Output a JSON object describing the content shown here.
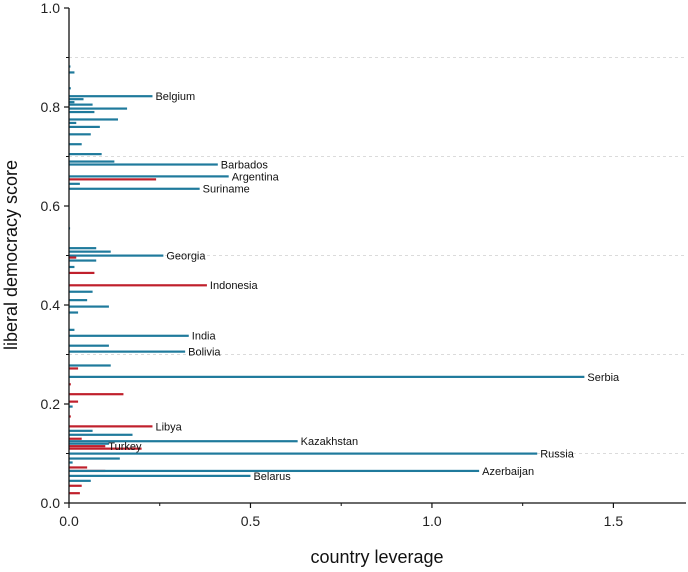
{
  "chart_data": {
    "type": "bar",
    "orientation": "horizontal",
    "xlabel": "country leverage",
    "ylabel": "liberal democracy score",
    "xlim": [
      0,
      1.7
    ],
    "ylim": [
      0,
      1.0
    ],
    "x_ticks": [
      {
        "value": 0,
        "label": "0.0"
      },
      {
        "value": 0.5,
        "label": "0.5"
      },
      {
        "value": 1.0,
        "label": "1.0"
      },
      {
        "value": 1.5,
        "label": "1.5"
      }
    ],
    "y_ticks": [
      {
        "value": 0,
        "label": "0.0"
      },
      {
        "value": 0.2,
        "label": "0.2"
      },
      {
        "value": 0.4,
        "label": "0.4"
      },
      {
        "value": 0.6,
        "label": "0.6"
      },
      {
        "value": 0.8,
        "label": "0.8"
      },
      {
        "value": 1.0,
        "label": "1.0"
      }
    ],
    "y_gridlines": [
      0.1,
      0.3,
      0.5,
      0.7,
      0.9
    ],
    "grid": "horizontal dashed",
    "colors": {
      "group_a": "#1f7a9c",
      "group_b": "#c0202c"
    },
    "bars": [
      {
        "score": 0.882,
        "leverage": 0.004,
        "group": "a"
      },
      {
        "score": 0.87,
        "leverage": 0.015,
        "group": "a"
      },
      {
        "score": 0.838,
        "leverage": 0.005,
        "group": "a"
      },
      {
        "score": 0.822,
        "leverage": 0.23,
        "group": "a",
        "label": "Belgium"
      },
      {
        "score": 0.816,
        "leverage": 0.04,
        "group": "a"
      },
      {
        "score": 0.81,
        "leverage": 0.015,
        "group": "a"
      },
      {
        "score": 0.805,
        "leverage": 0.065,
        "group": "a"
      },
      {
        "score": 0.797,
        "leverage": 0.16,
        "group": "a"
      },
      {
        "score": 0.79,
        "leverage": 0.07,
        "group": "a"
      },
      {
        "score": 0.775,
        "leverage": 0.135,
        "group": "a"
      },
      {
        "score": 0.768,
        "leverage": 0.02,
        "group": "a"
      },
      {
        "score": 0.76,
        "leverage": 0.085,
        "group": "a"
      },
      {
        "score": 0.745,
        "leverage": 0.06,
        "group": "a"
      },
      {
        "score": 0.725,
        "leverage": 0.035,
        "group": "a"
      },
      {
        "score": 0.705,
        "leverage": 0.09,
        "group": "a"
      },
      {
        "score": 0.69,
        "leverage": 0.125,
        "group": "a"
      },
      {
        "score": 0.684,
        "leverage": 0.41,
        "group": "a",
        "label": "Barbados"
      },
      {
        "score": 0.66,
        "leverage": 0.44,
        "group": "a",
        "label": "Argentina"
      },
      {
        "score": 0.654,
        "leverage": 0.24,
        "group": "b"
      },
      {
        "score": 0.645,
        "leverage": 0.03,
        "group": "a"
      },
      {
        "score": 0.635,
        "leverage": 0.36,
        "group": "a",
        "label": "Suriname"
      },
      {
        "score": 0.555,
        "leverage": 0.003,
        "group": "a"
      },
      {
        "score": 0.515,
        "leverage": 0.075,
        "group": "a"
      },
      {
        "score": 0.508,
        "leverage": 0.115,
        "group": "a"
      },
      {
        "score": 0.5,
        "leverage": 0.26,
        "group": "a",
        "label": "Georgia"
      },
      {
        "score": 0.496,
        "leverage": 0.02,
        "group": "b"
      },
      {
        "score": 0.49,
        "leverage": 0.075,
        "group": "a"
      },
      {
        "score": 0.477,
        "leverage": 0.015,
        "group": "a"
      },
      {
        "score": 0.465,
        "leverage": 0.07,
        "group": "b"
      },
      {
        "score": 0.44,
        "leverage": 0.38,
        "group": "b",
        "label": "Indonesia"
      },
      {
        "score": 0.427,
        "leverage": 0.065,
        "group": "a"
      },
      {
        "score": 0.41,
        "leverage": 0.05,
        "group": "a"
      },
      {
        "score": 0.397,
        "leverage": 0.11,
        "group": "a"
      },
      {
        "score": 0.385,
        "leverage": 0.025,
        "group": "a"
      },
      {
        "score": 0.35,
        "leverage": 0.015,
        "group": "a"
      },
      {
        "score": 0.338,
        "leverage": 0.33,
        "group": "a",
        "label": "India"
      },
      {
        "score": 0.318,
        "leverage": 0.11,
        "group": "a"
      },
      {
        "score": 0.306,
        "leverage": 0.32,
        "group": "a",
        "label": "Bolivia"
      },
      {
        "score": 0.278,
        "leverage": 0.115,
        "group": "a"
      },
      {
        "score": 0.272,
        "leverage": 0.025,
        "group": "b"
      },
      {
        "score": 0.255,
        "leverage": 1.42,
        "group": "a",
        "label": "Serbia"
      },
      {
        "score": 0.24,
        "leverage": 0.005,
        "group": "b"
      },
      {
        "score": 0.22,
        "leverage": 0.15,
        "group": "b"
      },
      {
        "score": 0.205,
        "leverage": 0.025,
        "group": "b"
      },
      {
        "score": 0.195,
        "leverage": 0.01,
        "group": "a"
      },
      {
        "score": 0.175,
        "leverage": 0.005,
        "group": "b"
      },
      {
        "score": 0.155,
        "leverage": 0.23,
        "group": "b",
        "label": "Libya"
      },
      {
        "score": 0.146,
        "leverage": 0.065,
        "group": "a"
      },
      {
        "score": 0.138,
        "leverage": 0.175,
        "group": "a"
      },
      {
        "score": 0.13,
        "leverage": 0.035,
        "group": "b"
      },
      {
        "score": 0.125,
        "leverage": 0.63,
        "group": "a",
        "label": "Kazakhstan"
      },
      {
        "score": 0.12,
        "leverage": 0.11,
        "group": "a"
      },
      {
        "score": 0.115,
        "leverage": 0.1,
        "group": "b",
        "label": "Turkey"
      },
      {
        "score": 0.11,
        "leverage": 0.2,
        "group": "b"
      },
      {
        "score": 0.1,
        "leverage": 1.29,
        "group": "a",
        "label": "Russia"
      },
      {
        "score": 0.09,
        "leverage": 0.14,
        "group": "a"
      },
      {
        "score": 0.082,
        "leverage": 0.01,
        "group": "a"
      },
      {
        "score": 0.072,
        "leverage": 0.05,
        "group": "b"
      },
      {
        "score": 0.065,
        "leverage": 0.1,
        "group": "b"
      },
      {
        "score": 0.065,
        "leverage": 1.13,
        "group": "a",
        "label": "Azerbaijan"
      },
      {
        "score": 0.055,
        "leverage": 0.5,
        "group": "a",
        "label": "Belarus"
      },
      {
        "score": 0.045,
        "leverage": 0.06,
        "group": "a"
      },
      {
        "score": 0.035,
        "leverage": 0.035,
        "group": "b"
      },
      {
        "score": 0.02,
        "leverage": 0.03,
        "group": "b"
      }
    ]
  }
}
